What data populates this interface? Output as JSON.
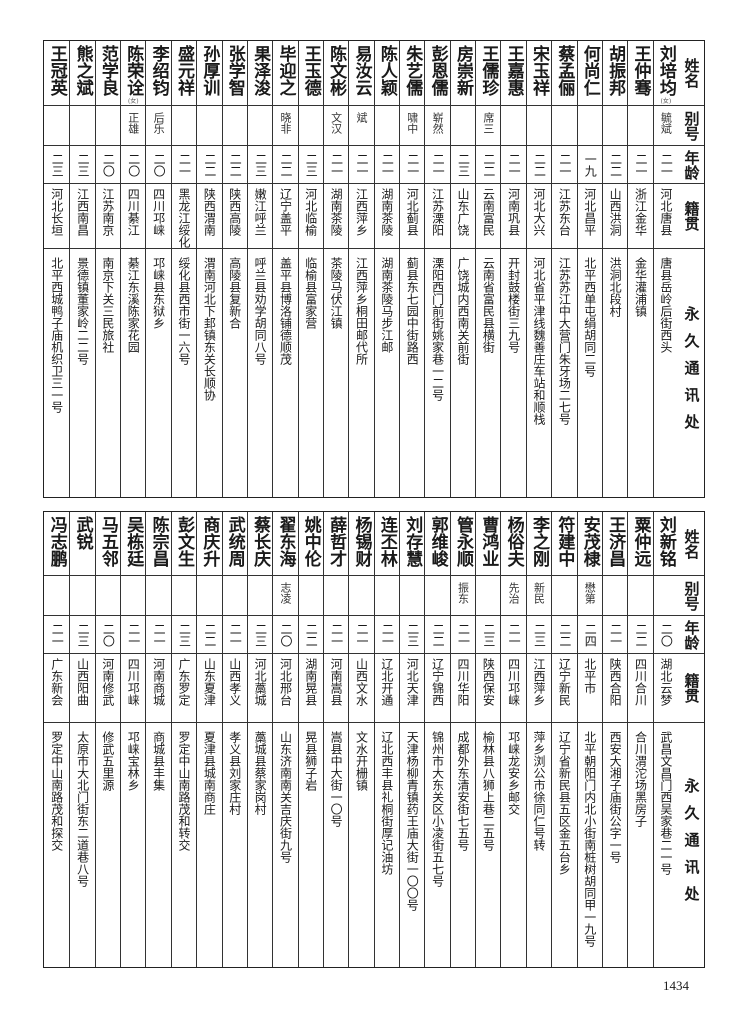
{
  "headers": {
    "name": "姓名",
    "alias": "别号",
    "age": "年龄",
    "origin": "籍贯",
    "address": "永久通讯处"
  },
  "top_rows": [
    {
      "name": "刘培均",
      "note": "(女)",
      "alias": "毓斌",
      "age": "二一",
      "origin": "河北唐县",
      "address": "唐县岳岭后街西头"
    },
    {
      "name": "王仲骞",
      "alias": "",
      "age": "二一",
      "origin": "浙江金华",
      "address": "金华灌浦镇"
    },
    {
      "name": "胡振邦",
      "alias": "",
      "age": "二二",
      "origin": "山西洪洞",
      "address": "洪洞北段村"
    },
    {
      "name": "何尚仁",
      "alias": "",
      "age": "一九",
      "origin": "河北昌平",
      "address": "北平西单屯绢胡同二号"
    },
    {
      "name": "蔡孟俪",
      "alias": "",
      "age": "二一",
      "origin": "江苏东台",
      "address": "江苏苏江中大营门朱牙场二七号"
    },
    {
      "name": "宋玉祥",
      "alias": "",
      "age": "二二",
      "origin": "河北大兴",
      "address": "河北省平津线魏善庄车站和顺栈"
    },
    {
      "name": "王嘉惠",
      "alias": "",
      "age": "二一",
      "origin": "河南巩县",
      "address": "开封鼓楼街三九号"
    },
    {
      "name": "王儒珍",
      "alias": "席三",
      "age": "二二",
      "origin": "云南富民",
      "address": "云南省富民县横街"
    },
    {
      "name": "房崇新",
      "alias": "",
      "age": "二三",
      "origin": "山东广饶",
      "address": "广饶城内西南关前街"
    },
    {
      "name": "彭恩儒",
      "alias": "崭然",
      "age": "二一",
      "origin": "江苏溧阳",
      "address": "溧阳西门前街姚家巷一二号"
    },
    {
      "name": "朱艺儒",
      "alias": "啸中",
      "age": "二一",
      "origin": "河北蓟县",
      "address": "蓟县东七园中街路西"
    },
    {
      "name": "陈人颖",
      "alias": "",
      "age": "二一",
      "origin": "湖南茶陵",
      "address": "湖南茶陵马步江邮"
    },
    {
      "name": "易汝云",
      "alias": "斌",
      "age": "二一",
      "origin": "江西萍乡",
      "address": "江西萍乡桐田邮代所"
    },
    {
      "name": "陈文彬",
      "alias": "文汉",
      "age": "二一",
      "origin": "湖南茶陵",
      "address": "茶陵马伏江镇"
    },
    {
      "name": "王玉德",
      "alias": "",
      "age": "二三",
      "origin": "河北临榆",
      "address": "临榆县富家营"
    },
    {
      "name": "毕迎之",
      "alias": "晓非",
      "age": "二二",
      "origin": "辽宁盖平",
      "address": "盖平县博洛铺德顺茂"
    },
    {
      "name": "果泽浚",
      "alias": "",
      "age": "二三",
      "origin": "嫩江呼兰",
      "address": "呼兰县劝学胡同八号"
    },
    {
      "name": "张学智",
      "alias": "",
      "age": "二二",
      "origin": "陕西高陵",
      "address": "高陵县复新合"
    },
    {
      "name": "孙厚训",
      "alias": "",
      "age": "二二",
      "origin": "陕西渭南",
      "address": "渭南河北下邽镇东关长顺协"
    },
    {
      "name": "盛元祥",
      "alias": "",
      "age": "二一",
      "origin": "黑龙江绥化",
      "address": "绥化县西市街一六号"
    },
    {
      "name": "李绍钧",
      "alias": "后乐",
      "age": "二〇",
      "origin": "四川邛崃",
      "address": "邛崃县东狱乡"
    },
    {
      "name": "陈荣诠",
      "note": "(女)",
      "alias": "正雄",
      "age": "二〇",
      "origin": "四川綦江",
      "address": "綦江东溪陈家花园"
    },
    {
      "name": "范学良",
      "alias": "",
      "age": "二〇",
      "origin": "江苏南京",
      "address": "南京下关三民旅社"
    },
    {
      "name": "熊之斌",
      "alias": "",
      "age": "二三",
      "origin": "江西南昌",
      "address": "景德镇董家岭二二号"
    },
    {
      "name": "王冠英",
      "alias": "",
      "age": "二三",
      "origin": "河北长垣",
      "address": "北平西城鸭子庙机织卫三一号"
    }
  ],
  "bottom_rows": [
    {
      "name": "刘新铭",
      "alias": "",
      "age": "二〇",
      "origin": "湖北云梦",
      "address": "武昌文昌门西吴家巷二一号"
    },
    {
      "name": "粟仲远",
      "alias": "",
      "age": "二二",
      "origin": "四川合川",
      "address": "合川渭沱场黑房子"
    },
    {
      "name": "王济昌",
      "alias": "",
      "age": "二一",
      "origin": "陕西合阳",
      "address": "西安大湘子庙街公字一号"
    },
    {
      "name": "安茂棣",
      "alias": "懋第",
      "age": "二四",
      "origin": "北平市",
      "address": "北平朝阳门内北小街南桩树胡同甲一九号"
    },
    {
      "name": "符建中",
      "alias": "",
      "age": "二二",
      "origin": "辽宁新民",
      "address": "辽宁省新民县五区金五台乡"
    },
    {
      "name": "李之刚",
      "alias": "新民",
      "age": "二三",
      "origin": "江西萍乡",
      "address": "萍乡浏公市徐同仁号转"
    },
    {
      "name": "杨俗夫",
      "alias": "先治",
      "age": "二一",
      "origin": "四川邛崃",
      "address": "邛崃龙安乡邮交"
    },
    {
      "name": "曹鸿业",
      "alias": "",
      "age": "二三",
      "origin": "陕西保安",
      "address": "榆林县八狮上巷二五号"
    },
    {
      "name": "管永顺",
      "alias": "振东",
      "age": "二一",
      "origin": "四川华阳",
      "address": "成都外东清安街七五号"
    },
    {
      "name": "郭维峻",
      "alias": "",
      "age": "二二",
      "origin": "辽宁锦西",
      "address": "锦州市大东关区小凌街五七号"
    },
    {
      "name": "刘存慧",
      "alias": "",
      "age": "二三",
      "origin": "河北天津",
      "address": "天津杨柳青镇药王庙大街一〇〇号"
    },
    {
      "name": "连丕林",
      "alias": "",
      "age": "二一",
      "origin": "辽北开通",
      "address": "辽北西丰县礼桐街厚记油坊"
    },
    {
      "name": "杨锡财",
      "alias": "",
      "age": "二一",
      "origin": "山西文水",
      "address": "文水开栅镇"
    },
    {
      "name": "薛哲才",
      "alias": "",
      "age": "二一",
      "origin": "河南嵩县",
      "address": "嵩县中大街一〇号"
    },
    {
      "name": "姚中伦",
      "alias": "",
      "age": "二二",
      "origin": "湖南晃县",
      "address": "晃县狮子岩"
    },
    {
      "name": "翟东海",
      "alias": "志凌",
      "age": "二〇",
      "origin": "河北邢台",
      "address": "山东济南南关吉庆街九号"
    },
    {
      "name": "蔡长庆",
      "alias": "",
      "age": "二三",
      "origin": "河北藁城",
      "address": "藁城县蔡家岗村"
    },
    {
      "name": "武统周",
      "alias": "",
      "age": "二一",
      "origin": "山西孝义",
      "address": "孝义县刘家庄村"
    },
    {
      "name": "商庆升",
      "alias": "",
      "age": "二二",
      "origin": "山东夏津",
      "address": "夏津县城南商庄"
    },
    {
      "name": "彭文生",
      "alias": "",
      "age": "二三",
      "origin": "广东罗定",
      "address": "罗定中山南路茂和转交"
    },
    {
      "name": "陈宗昌",
      "alias": "",
      "age": "二一",
      "origin": "河南商城",
      "address": "商城县丰集"
    },
    {
      "name": "吴栋廷",
      "alias": "",
      "age": "二一",
      "origin": "四川邛崃",
      "address": "邛崃宝林乡"
    },
    {
      "name": "马五邻",
      "alias": "",
      "age": "二〇",
      "origin": "河南修武",
      "address": "修武五里源"
    },
    {
      "name": "武锐",
      "alias": "",
      "age": "二三",
      "origin": "山西阳曲",
      "address": "太原市大北门街东二道巷八号"
    },
    {
      "name": "冯志鹏",
      "alias": "",
      "age": "二一",
      "origin": "广东新会",
      "address": "罗定中山南路茂和探交"
    }
  ],
  "page_number": "1434"
}
